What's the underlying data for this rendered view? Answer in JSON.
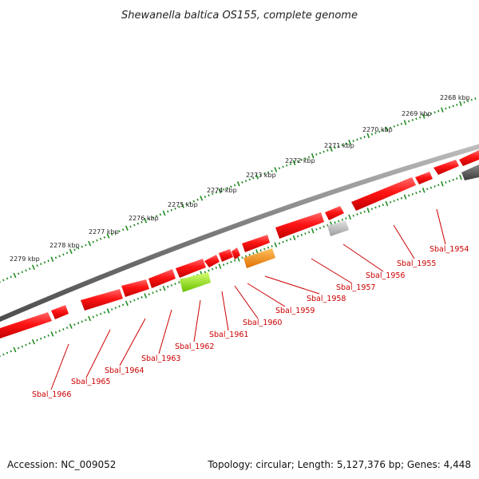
{
  "title": "Shewanella baltica OS155, complete genome",
  "accession": "Accession: NC_009052",
  "topology": "Topology: circular; Length: 5,127,376 bp; Genes: 4,448",
  "scale_labels": [
    "2268 kbp",
    "2269 kbp",
    "2270 kbp",
    "2271 kbp",
    "2272 kbp",
    "2273 kbp",
    "2274 kbp",
    "2275 kbp",
    "2276 kbp",
    "2277 kbp",
    "2278 kbp",
    "2279 kbp"
  ],
  "genes": [
    "Sbal_1954",
    "Sbal_1955",
    "Sbal_1956",
    "Sbal_1957",
    "Sbal_1958",
    "Sbal_1959",
    "Sbal_1960",
    "Sbal_1961",
    "Sbal_1962",
    "Sbal_1963",
    "Sbal_1964",
    "Sbal_1965",
    "Sbal_1966"
  ],
  "colors": {
    "gene_label": "#cc0000",
    "gene_red": "#ff1a1a",
    "gene_gray": "#b4b4b4",
    "gene_dark": "#555555",
    "gene_orange": "#ff8c00",
    "gene_lime": "#8ee010",
    "scale_tick": "#228b22",
    "backbone": "#7a7a7a"
  }
}
